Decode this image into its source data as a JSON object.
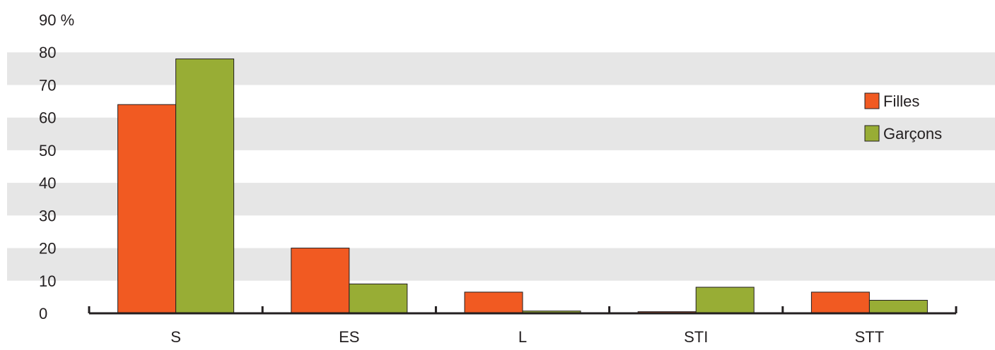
{
  "chart_data": {
    "type": "bar",
    "categories": [
      "S",
      "ES",
      "L",
      "STI",
      "STT"
    ],
    "series": [
      {
        "name": "Filles",
        "values": [
          64,
          20,
          6.5,
          0.5,
          6.5
        ]
      },
      {
        "name": "Garçons",
        "values": [
          78,
          9,
          0.7,
          8,
          4
        ]
      }
    ],
    "title": "",
    "xlabel": "",
    "ylabel": "",
    "ylim": [
      0,
      90
    ],
    "y_ticks": [
      "0",
      "10",
      "20",
      "30",
      "40",
      "50",
      "60",
      "70",
      "80",
      "90 %"
    ],
    "grid": "alternating horizontal bands",
    "legend_position": "right",
    "colors": {
      "Filles": "#f15a22",
      "Garçons": "#98ad35",
      "band": "#e6e6e6",
      "axis": "#231f20"
    }
  }
}
